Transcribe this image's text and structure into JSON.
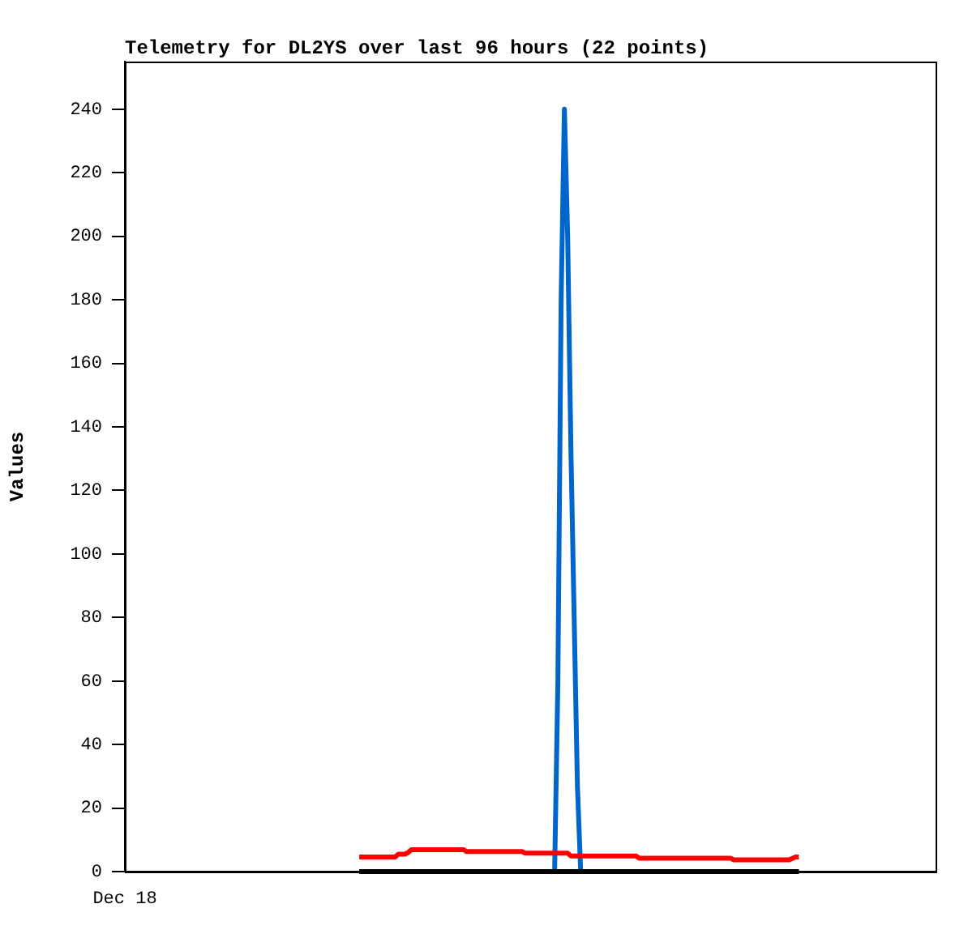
{
  "chart_data": {
    "type": "line",
    "title": "Telemetry for DL2YS over last 96 hours (22 points)",
    "ylabel": "Values",
    "categories": [
      "Dec 18",
      null,
      null,
      null,
      null,
      null,
      null,
      null,
      null,
      null,
      null,
      null,
      null,
      null,
      null,
      null,
      null,
      null,
      null,
      null,
      null,
      null,
      null,
      null,
      null,
      null,
      null,
      null,
      null,
      null,
      null,
      null,
      null,
      null,
      null,
      null,
      null,
      null,
      null,
      null,
      null,
      null,
      null,
      null,
      null,
      null,
      null,
      null,
      null,
      null,
      null,
      null,
      null,
      null,
      null,
      null,
      null,
      null,
      null,
      null,
      null,
      null,
      null,
      null,
      null,
      null,
      null,
      null,
      null,
      null,
      null,
      null,
      null,
      null,
      null,
      null,
      null,
      null,
      null,
      null,
      null,
      null,
      null,
      null,
      null,
      null,
      null,
      null,
      null,
      null,
      null,
      null,
      null,
      null,
      null,
      null,
      null,
      null,
      null,
      null,
      null,
      null,
      null,
      null,
      null,
      null,
      null,
      null,
      null,
      null,
      null,
      null,
      null,
      null,
      null,
      null,
      null,
      null,
      null,
      null,
      null,
      null,
      null,
      null,
      null,
      null,
      null,
      null,
      null,
      null,
      null,
      null,
      null,
      null,
      null,
      null,
      null,
      null,
      null,
      null,
      null,
      null,
      null,
      null,
      null,
      null,
      null,
      null,
      null,
      null,
      null,
      null,
      null,
      null,
      null,
      null,
      null,
      null,
      null,
      null,
      null,
      null,
      null,
      null,
      null,
      null,
      null,
      null,
      null,
      null,
      null,
      null,
      null,
      null,
      null,
      null,
      null,
      null,
      null,
      null,
      null,
      null,
      null,
      null,
      null,
      null,
      null,
      null,
      null,
      null,
      null,
      null,
      null,
      null,
      null,
      null,
      null,
      null,
      null,
      null,
      null,
      null,
      null,
      null,
      null,
      null,
      null,
      null,
      null,
      null,
      null,
      null,
      null,
      null,
      null,
      null,
      null,
      null,
      null,
      null,
      null,
      null,
      null,
      null,
      null,
      null,
      null,
      null,
      null,
      null,
      null,
      null,
      null,
      null,
      null,
      null,
      null,
      null,
      null,
      null,
      null,
      null,
      null,
      null,
      null,
      null,
      null,
      null,
      null,
      null
    ],
    "ylim": [
      0,
      255
    ],
    "yticks": [
      0,
      20,
      40,
      60,
      80,
      100,
      120,
      140,
      160,
      180,
      200,
      220,
      240
    ],
    "grid": false,
    "legend": false,
    "series": [
      {
        "color": "#0066cc",
        "values": [
          null,
          null,
          null,
          null,
          null,
          null,
          null,
          null,
          null,
          null,
          null,
          null,
          null,
          null,
          null,
          null,
          null,
          null,
          null,
          null,
          null,
          null,
          null,
          null,
          null,
          null,
          null,
          null,
          null,
          null,
          null,
          null,
          null,
          null,
          null,
          null,
          null,
          null,
          null,
          null,
          null,
          null,
          null,
          null,
          null,
          null,
          null,
          null,
          null,
          null,
          null,
          null,
          null,
          null,
          null,
          null,
          null,
          null,
          null,
          null,
          null,
          null,
          null,
          null,
          null,
          null,
          null,
          null,
          null,
          null,
          null,
          null,
          0,
          null,
          null,
          null,
          null,
          null,
          null,
          null,
          null,
          null,
          null,
          null,
          null,
          null,
          null,
          null,
          null,
          null,
          null,
          null,
          null,
          null,
          null,
          null,
          null,
          null,
          null,
          null,
          null,
          null,
          null,
          null,
          null,
          null,
          null,
          null,
          null,
          null,
          null,
          null,
          null,
          null,
          null,
          null,
          null,
          null,
          null,
          null,
          null,
          null,
          null,
          null,
          null,
          null,
          null,
          null,
          null,
          null,
          null,
          null,
          0,
          60,
          180,
          240,
          200,
          133,
          80,
          27,
          0,
          null,
          null,
          null,
          null,
          null,
          null,
          null,
          null,
          null,
          null,
          null,
          null,
          null,
          null,
          null,
          null,
          null,
          null,
          null,
          null,
          null,
          null,
          null,
          null,
          null,
          null,
          null,
          null,
          null,
          null,
          null,
          null,
          null,
          null,
          null,
          null,
          null,
          null,
          null,
          null,
          null,
          null,
          null,
          null,
          null,
          null,
          null,
          null,
          null,
          null,
          null,
          null,
          null,
          null,
          null,
          null,
          null,
          null,
          null,
          null,
          null,
          null,
          null,
          null,
          null,
          null,
          0,
          null,
          null,
          null,
          null,
          null,
          null,
          null,
          null,
          null,
          null,
          null,
          null,
          null,
          null,
          null,
          null,
          null,
          null,
          null,
          null,
          null,
          null,
          null,
          null,
          null,
          null,
          null,
          null,
          null,
          null,
          null,
          null,
          null,
          null,
          null,
          null,
          null,
          null,
          null,
          null,
          null,
          null
        ]
      },
      {
        "color": "#ff0000",
        "values": [
          null,
          null,
          null,
          null,
          null,
          null,
          null,
          null,
          null,
          null,
          null,
          null,
          null,
          null,
          null,
          null,
          null,
          null,
          null,
          null,
          null,
          null,
          null,
          null,
          null,
          null,
          null,
          null,
          null,
          null,
          null,
          null,
          null,
          null,
          null,
          null,
          null,
          null,
          null,
          null,
          null,
          null,
          null,
          null,
          null,
          null,
          null,
          null,
          null,
          null,
          null,
          null,
          null,
          null,
          null,
          null,
          null,
          null,
          null,
          null,
          null,
          null,
          null,
          null,
          null,
          null,
          null,
          null,
          null,
          null,
          null,
          null,
          4.6,
          null,
          null,
          null,
          null,
          null,
          null,
          null,
          null,
          null,
          null,
          4.6,
          5.5,
          null,
          5.5,
          6,
          6.9,
          null,
          null,
          null,
          null,
          null,
          null,
          null,
          null,
          null,
          null,
          null,
          null,
          null,
          null,
          null,
          6.9,
          6.3,
          null,
          null,
          null,
          null,
          null,
          null,
          null,
          null,
          null,
          null,
          null,
          null,
          null,
          null,
          null,
          null,
          6.3,
          5.8,
          null,
          null,
          null,
          null,
          null,
          null,
          null,
          null,
          null,
          null,
          null,
          null,
          5.8,
          4.9,
          null,
          null,
          null,
          null,
          null,
          null,
          null,
          null,
          null,
          null,
          null,
          null,
          null,
          null,
          null,
          null,
          null,
          null,
          null,
          4.9,
          4.2,
          null,
          null,
          null,
          null,
          null,
          null,
          null,
          null,
          null,
          null,
          null,
          null,
          null,
          null,
          null,
          null,
          null,
          null,
          null,
          null,
          null,
          null,
          null,
          null,
          null,
          null,
          null,
          4.2,
          3.7,
          null,
          null,
          null,
          null,
          null,
          null,
          null,
          null,
          null,
          null,
          null,
          null,
          null,
          null,
          null,
          null,
          3.7,
          null,
          4.6,
          4.6,
          null,
          null,
          null,
          null,
          null,
          null,
          null,
          null,
          null,
          null,
          null,
          null,
          null,
          null,
          null,
          null,
          null,
          null,
          null,
          null,
          null,
          null,
          null,
          null,
          null,
          null,
          null,
          null,
          null,
          null,
          null,
          null,
          null,
          null,
          null,
          null,
          null,
          null,
          null,
          null,
          null,
          null
        ]
      },
      {
        "color": "#000000",
        "values": [
          null,
          null,
          null,
          null,
          null,
          null,
          null,
          null,
          null,
          null,
          null,
          null,
          null,
          null,
          null,
          null,
          null,
          null,
          null,
          null,
          null,
          null,
          null,
          null,
          null,
          null,
          null,
          null,
          null,
          null,
          null,
          null,
          null,
          null,
          null,
          null,
          null,
          null,
          null,
          null,
          null,
          null,
          null,
          null,
          null,
          null,
          null,
          null,
          null,
          null,
          null,
          null,
          null,
          null,
          null,
          null,
          null,
          null,
          null,
          null,
          null,
          null,
          null,
          null,
          null,
          null,
          null,
          null,
          null,
          null,
          null,
          null,
          0,
          null,
          null,
          null,
          null,
          null,
          null,
          null,
          null,
          null,
          null,
          null,
          null,
          null,
          null,
          null,
          null,
          null,
          null,
          null,
          null,
          null,
          null,
          null,
          null,
          null,
          null,
          null,
          null,
          null,
          null,
          null,
          null,
          null,
          null,
          null,
          null,
          null,
          null,
          null,
          null,
          null,
          null,
          null,
          null,
          null,
          null,
          null,
          null,
          null,
          null,
          null,
          null,
          null,
          null,
          null,
          null,
          null,
          null,
          null,
          null,
          null,
          null,
          null,
          null,
          null,
          null,
          null,
          null,
          null,
          null,
          null,
          null,
          null,
          null,
          null,
          null,
          null,
          null,
          null,
          null,
          null,
          null,
          null,
          null,
          null,
          null,
          null,
          null,
          null,
          null,
          null,
          null,
          null,
          null,
          null,
          null,
          null,
          null,
          null,
          null,
          null,
          null,
          null,
          null,
          null,
          null,
          null,
          null,
          null,
          null,
          null,
          null,
          null,
          null,
          null,
          null,
          null,
          null,
          null,
          null,
          null,
          null,
          null,
          null,
          null,
          null,
          null,
          null,
          null,
          null,
          null,
          null,
          null,
          null,
          0,
          null,
          null,
          null,
          null,
          null,
          null,
          null,
          null,
          null,
          null,
          null,
          null,
          null,
          null,
          null,
          null,
          null,
          null,
          null,
          null,
          null,
          null,
          null,
          null,
          null,
          null,
          null,
          null,
          null,
          null,
          null,
          null,
          null,
          null,
          null,
          null,
          null,
          null,
          null,
          null,
          null,
          null
        ]
      }
    ]
  }
}
